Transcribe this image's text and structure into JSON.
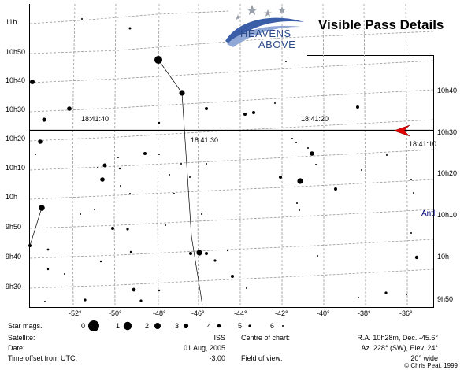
{
  "header": {
    "title": "Visible Pass Details",
    "logo_line1": "HEAVENS",
    "logo_line2": "ABOVE"
  },
  "chart": {
    "ra_labels_left": [
      "11h",
      "10h50",
      "10h40",
      "10h30",
      "10h20",
      "10h10",
      "10h",
      "9h50",
      "9h40",
      "9h30"
    ],
    "ra_labels_right": [
      "10h40",
      "10h30",
      "10h20",
      "10h10",
      "10h",
      "9h50"
    ],
    "dec_labels": [
      "-52°",
      "-50°",
      "-48°",
      "-46°",
      "-44°",
      "-42°",
      "-40°",
      "-38°",
      "-36°"
    ],
    "time_labels": [
      "18:41:40",
      "18:41:30",
      "18:41:20",
      "18:41:10"
    ],
    "antlia_label": "Antl"
  },
  "legend": {
    "label": "Star mags.",
    "mags": [
      "0",
      "1",
      "2",
      "3",
      "4",
      "5",
      "6"
    ]
  },
  "info": {
    "satellite_label": "Satellite:",
    "satellite_value": "ISS",
    "date_label": "Date:",
    "date_value": "01 Aug, 2005",
    "offset_label": "Time offset from UTC:",
    "offset_value": "-3:00",
    "centre_label": "Centre of chart:",
    "centre_value1": "R.A. 10h28m, Dec. -45.6°",
    "centre_value2": "Az. 228° (SW), Elev. 24°",
    "fov_label": "Field of view:",
    "fov_value": "20° wide",
    "copyright": "© Chris Peat, 1999"
  }
}
